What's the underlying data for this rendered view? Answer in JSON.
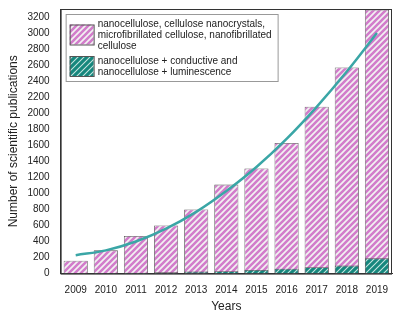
{
  "chart_data": {
    "type": "bar",
    "x_label": "Years",
    "y_label": "Number of scientific publications",
    "categories": [
      "2009",
      "2010",
      "2011",
      "2012",
      "2013",
      "2014",
      "2015",
      "2016",
      "2017",
      "2018",
      "2019"
    ],
    "series": [
      {
        "name": "nanocellulose, cellulose nanocrystals, microfibrillated cellulose, nanofibrillated cellulose",
        "color": "#d27ccb",
        "values": [
          160,
          290,
          470,
          600,
          800,
          1110,
          1310,
          1630,
          2080,
          2570,
          3290
        ]
      },
      {
        "name": "nanocellulose + conductive and nanocellulose + luminescence",
        "color": "#16877d",
        "values": [
          5,
          8,
          12,
          18,
          25,
          30,
          45,
          60,
          80,
          100,
          190
        ]
      },
      {
        "type": "line",
        "color": "#3aa6a6",
        "values": [
          230,
          290,
          400,
          560,
          770,
          1030,
          1330,
          1680,
          2080,
          2520,
          3000
        ]
      }
    ],
    "stacked": false,
    "ylim": [
      0,
      3300
    ],
    "yticks": [
      0,
      200,
      400,
      600,
      800,
      1000,
      1200,
      1400,
      1600,
      1800,
      2000,
      2200,
      2400,
      2600,
      2800,
      3000,
      3200
    ],
    "grid": false,
    "legend": "upper left"
  }
}
